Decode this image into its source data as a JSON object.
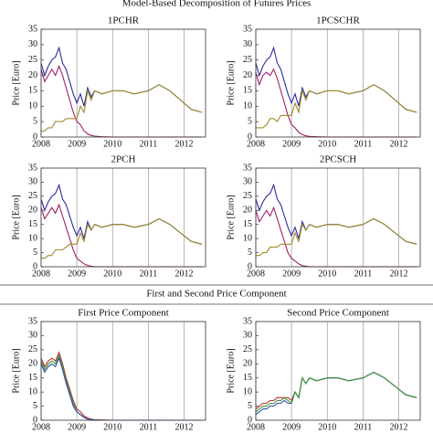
{
  "figure_title": "Model-Based Decomposition of Futures Prices",
  "section_title": "First and Second Price Component",
  "chart_data": [
    {
      "type": "line",
      "title": "1PCHR",
      "ylabel": "Price [Euro]",
      "x": [
        2008,
        2008.1,
        2008.2,
        2008.3,
        2008.4,
        2008.5,
        2008.6,
        2008.7,
        2008.8,
        2008.9,
        2009,
        2009.1,
        2009.2,
        2009.3,
        2009.4,
        2009.5,
        2009.7,
        2010,
        2010.3,
        2010.6,
        2011,
        2011.3,
        2011.6,
        2011.9,
        2012.2,
        2012.5
      ],
      "series": [
        {
          "color": "#2b2b9a",
          "values": [
            24,
            20,
            23,
            25,
            26,
            29,
            24,
            22,
            18,
            14,
            11,
            14,
            10,
            16,
            13,
            15,
            14,
            15,
            15,
            14,
            15,
            17,
            15,
            12,
            9,
            8
          ]
        },
        {
          "color": "#a0206a",
          "values": [
            22,
            18,
            20,
            22,
            20,
            23,
            20,
            16,
            12,
            8,
            5,
            4,
            2,
            1,
            0.5,
            0.3,
            0.1,
            0,
            0,
            0,
            0,
            0,
            0,
            0,
            0,
            0
          ]
        },
        {
          "color": "#a08c2a",
          "values": [
            2,
            2,
            3,
            3,
            5,
            5,
            5,
            6,
            6,
            6,
            6,
            10,
            8,
            15,
            12,
            15,
            14,
            15,
            15,
            14,
            15,
            17,
            15,
            12,
            9,
            8
          ]
        }
      ],
      "xlim": [
        2008,
        2012.6
      ],
      "ylim": [
        0,
        35
      ],
      "xticks": [
        2008,
        2009,
        2010,
        2011,
        2012
      ],
      "yticks": [
        0,
        5,
        10,
        15,
        20,
        25,
        30,
        35
      ]
    },
    {
      "type": "line",
      "title": "1PCSCHR",
      "ylabel": "Price [Euro]",
      "x": [
        2008,
        2008.1,
        2008.2,
        2008.3,
        2008.4,
        2008.5,
        2008.6,
        2008.7,
        2008.8,
        2008.9,
        2009,
        2009.1,
        2009.2,
        2009.3,
        2009.4,
        2009.5,
        2009.7,
        2010,
        2010.3,
        2010.6,
        2011,
        2011.3,
        2011.6,
        2011.9,
        2012.2,
        2012.5
      ],
      "series": [
        {
          "color": "#2b2b9a",
          "values": [
            24,
            20,
            23,
            25,
            26,
            29,
            24,
            22,
            18,
            14,
            11,
            14,
            10,
            16,
            13,
            15,
            14,
            15,
            15,
            14,
            15,
            17,
            15,
            12,
            9,
            8
          ]
        },
        {
          "color": "#a0206a",
          "values": [
            21,
            17,
            20,
            21,
            20,
            22,
            19,
            15,
            11,
            7,
            4,
            3,
            1.5,
            0.8,
            0.4,
            0.2,
            0.1,
            0,
            0,
            0,
            0,
            0,
            0,
            0,
            0,
            0
          ]
        },
        {
          "color": "#a08c2a",
          "values": [
            3,
            3,
            3,
            4,
            6,
            6,
            5,
            7,
            7,
            7,
            7,
            11,
            8,
            15,
            12,
            15,
            14,
            15,
            15,
            14,
            15,
            17,
            15,
            12,
            9,
            8
          ]
        }
      ],
      "xlim": [
        2008,
        2012.6
      ],
      "ylim": [
        0,
        35
      ],
      "xticks": [
        2008,
        2009,
        2010,
        2011,
        2012
      ],
      "yticks": [
        0,
        5,
        10,
        15,
        20,
        25,
        30,
        35
      ]
    },
    {
      "type": "line",
      "title": "2PCH",
      "ylabel": "Price [Euro]",
      "x": [
        2008,
        2008.1,
        2008.2,
        2008.3,
        2008.4,
        2008.5,
        2008.6,
        2008.7,
        2008.8,
        2008.9,
        2009,
        2009.1,
        2009.2,
        2009.3,
        2009.4,
        2009.5,
        2009.7,
        2010,
        2010.3,
        2010.6,
        2011,
        2011.3,
        2011.6,
        2011.9,
        2012.2,
        2012.5
      ],
      "series": [
        {
          "color": "#2b2b9a",
          "values": [
            24,
            20,
            23,
            25,
            26,
            29,
            24,
            22,
            18,
            14,
            11,
            14,
            10,
            16,
            13,
            15,
            14,
            15,
            15,
            14,
            15,
            17,
            15,
            12,
            9,
            8
          ]
        },
        {
          "color": "#a0206a",
          "values": [
            21,
            17,
            19,
            21,
            19,
            22,
            18,
            14,
            10,
            6,
            3,
            2,
            1,
            0.5,
            0.2,
            0,
            0,
            0,
            0,
            0,
            0,
            0,
            0,
            0,
            0,
            0
          ]
        },
        {
          "color": "#a08c2a",
          "values": [
            3,
            3,
            4,
            4,
            6,
            6,
            6,
            7,
            8,
            8,
            8,
            12,
            9,
            15,
            13,
            15,
            14,
            15,
            15,
            14,
            15,
            17,
            15,
            12,
            9,
            8
          ]
        }
      ],
      "xlim": [
        2008,
        2012.6
      ],
      "ylim": [
        0,
        35
      ],
      "xticks": [
        2008,
        2009,
        2010,
        2011,
        2012
      ],
      "yticks": [
        0,
        5,
        10,
        15,
        20,
        25,
        30,
        35
      ]
    },
    {
      "type": "line",
      "title": "2PCSCH",
      "ylabel": "Price [Euro]",
      "x": [
        2008,
        2008.1,
        2008.2,
        2008.3,
        2008.4,
        2008.5,
        2008.6,
        2008.7,
        2008.8,
        2008.9,
        2009,
        2009.1,
        2009.2,
        2009.3,
        2009.4,
        2009.5,
        2009.7,
        2010,
        2010.3,
        2010.6,
        2011,
        2011.3,
        2011.6,
        2011.9,
        2012.2,
        2012.5
      ],
      "series": [
        {
          "color": "#2b2b9a",
          "values": [
            24,
            20,
            23,
            25,
            26,
            29,
            24,
            22,
            18,
            14,
            11,
            14,
            10,
            16,
            13,
            15,
            14,
            15,
            15,
            14,
            15,
            17,
            15,
            12,
            9,
            8
          ]
        },
        {
          "color": "#a0206a",
          "values": [
            20,
            16,
            18,
            20,
            18,
            21,
            17,
            13,
            9,
            5,
            3,
            2,
            1,
            0.4,
            0.2,
            0,
            0,
            0,
            0,
            0,
            0,
            0,
            0,
            0,
            0,
            0
          ]
        },
        {
          "color": "#a08c2a",
          "values": [
            4,
            4,
            5,
            5,
            7,
            7,
            7,
            8,
            8,
            8,
            8,
            12,
            9,
            15,
            13,
            15,
            14,
            15,
            15,
            14,
            15,
            17,
            15,
            12,
            9,
            8
          ]
        }
      ],
      "xlim": [
        2008,
        2012.6
      ],
      "ylim": [
        0,
        35
      ],
      "xticks": [
        2008,
        2009,
        2010,
        2011,
        2012
      ],
      "yticks": [
        0,
        5,
        10,
        15,
        20,
        25,
        30,
        35
      ]
    },
    {
      "type": "line",
      "title": "First Price Component",
      "ylabel": "Price [Euro]",
      "x": [
        2008,
        2008.1,
        2008.2,
        2008.3,
        2008.4,
        2008.5,
        2008.6,
        2008.7,
        2008.8,
        2008.9,
        2009,
        2009.1,
        2009.2,
        2009.3,
        2009.4,
        2009.5,
        2009.7,
        2010,
        2010.3,
        2010.6,
        2011,
        2011.3,
        2011.6,
        2011.9,
        2012.2,
        2012.5
      ],
      "series": [
        {
          "color": "#c03030",
          "values": [
            22,
            19,
            21,
            22,
            21,
            24,
            20,
            15,
            11,
            7,
            4,
            3,
            1.5,
            0.8,
            0.4,
            0.2,
            0.1,
            0,
            0,
            0,
            0,
            0,
            0,
            0,
            0,
            0
          ]
        },
        {
          "color": "#3a9a3a",
          "values": [
            21,
            18,
            20,
            21,
            20,
            23,
            19,
            14,
            10,
            6,
            3,
            2,
            1,
            0.5,
            0.2,
            0.1,
            0,
            0,
            0,
            0,
            0,
            0,
            0,
            0,
            0,
            0
          ]
        },
        {
          "color": "#3050b0",
          "values": [
            20,
            17,
            19,
            20,
            19,
            22,
            18,
            13,
            9,
            5,
            3,
            2,
            1,
            0.4,
            0.2,
            0,
            0,
            0,
            0,
            0,
            0,
            0,
            0,
            0,
            0,
            0
          ]
        }
      ],
      "xlim": [
        2008,
        2012.6
      ],
      "ylim": [
        0,
        35
      ],
      "xticks": [
        2008,
        2009,
        2010,
        2011,
        2012
      ],
      "yticks": [
        0,
        5,
        10,
        15,
        20,
        25,
        30,
        35
      ]
    },
    {
      "type": "line",
      "title": "Second Price Component",
      "ylabel": "Price [Euro]",
      "x": [
        2008,
        2008.1,
        2008.2,
        2008.3,
        2008.4,
        2008.5,
        2008.6,
        2008.7,
        2008.8,
        2008.9,
        2009,
        2009.1,
        2009.2,
        2009.3,
        2009.4,
        2009.5,
        2009.7,
        2010,
        2010.3,
        2010.6,
        2011,
        2011.3,
        2011.6,
        2011.9,
        2012.2,
        2012.5
      ],
      "series": [
        {
          "color": "#c03030",
          "values": [
            4,
            5,
            6,
            6,
            7,
            7,
            8,
            8,
            8,
            8,
            7,
            10,
            8,
            15,
            13,
            15,
            14,
            15,
            15,
            14,
            15,
            17,
            15,
            12,
            9,
            8
          ]
        },
        {
          "color": "#3050b0",
          "values": [
            2,
            3,
            4,
            4,
            5,
            5,
            6,
            6,
            7,
            6,
            6,
            10,
            8,
            15,
            13,
            15,
            14,
            15,
            15,
            14,
            15,
            17,
            15,
            12,
            9,
            8
          ]
        },
        {
          "color": "#3a9a3a",
          "values": [
            3,
            4,
            5,
            5,
            6,
            6,
            7,
            7,
            8,
            7,
            6,
            10,
            8,
            15,
            13,
            15,
            14,
            15,
            15,
            14,
            15,
            17,
            15,
            12,
            9,
            8
          ]
        }
      ],
      "xlim": [
        2008,
        2012.6
      ],
      "ylim": [
        0,
        35
      ],
      "xticks": [
        2008,
        2009,
        2010,
        2011,
        2012
      ],
      "yticks": [
        0,
        5,
        10,
        15,
        20,
        25,
        30,
        35
      ]
    }
  ]
}
